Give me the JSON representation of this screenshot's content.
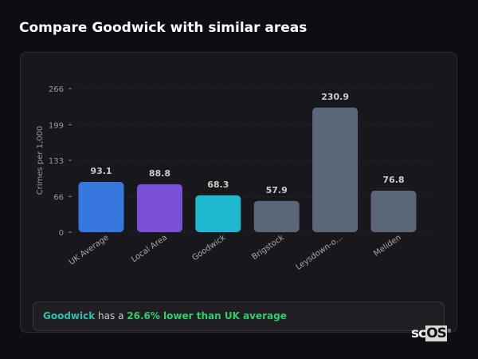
{
  "header": {
    "title": "Compare Goodwick with similar areas"
  },
  "chart_data": {
    "type": "bar",
    "title": "",
    "xlabel": "",
    "ylabel": "Crimes per 1,000",
    "ylim": [
      0,
      266
    ],
    "yticks": [
      0,
      66,
      133,
      199,
      266
    ],
    "categories": [
      "UK Average",
      "Local Area",
      "Goodwick",
      "Brigstock",
      "Leysdown-o...",
      "Meliden"
    ],
    "values": [
      93.1,
      88.8,
      68.3,
      57.9,
      230.9,
      76.8
    ],
    "data_labels": [
      "93.1",
      "88.8",
      "68.3",
      "57.9",
      "230.9",
      "76.8"
    ],
    "colors": [
      "#3677dd",
      "#7a50d6",
      "#1fb8d0",
      "#5b6679",
      "#5b6679",
      "#5b6679"
    ],
    "grid": true
  },
  "summary": {
    "area": "Goodwick",
    "middle": " has a ",
    "comparison": "26.6% lower than UK average"
  },
  "logo": {
    "text_a": "sc",
    "text_b": "OS",
    "mark": "®"
  }
}
